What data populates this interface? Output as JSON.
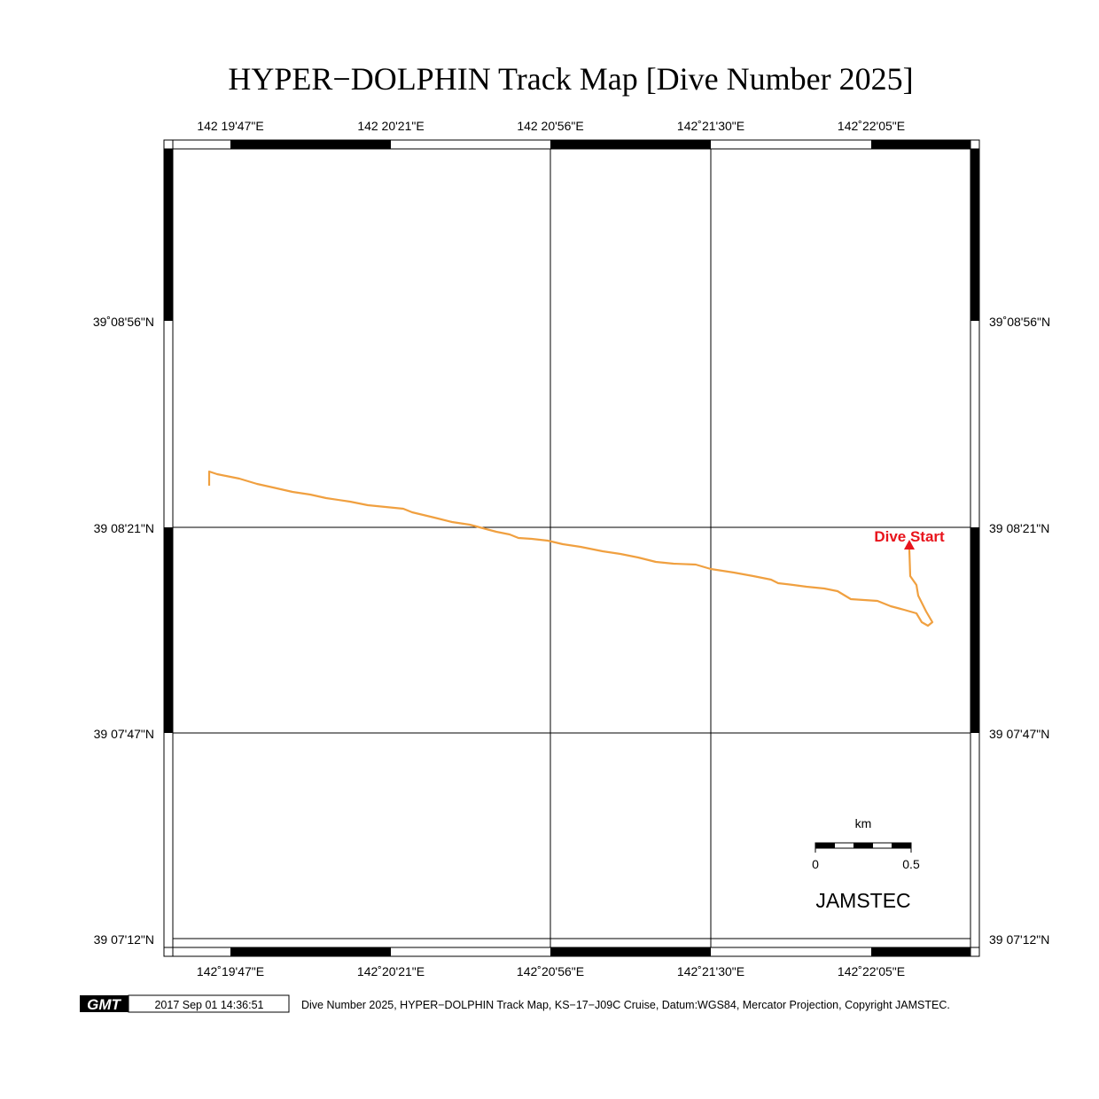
{
  "title": "HYPER−DOLPHIN Track Map [Dive Number 2025]",
  "top_lon_labels": [
    "142 19'47\"E",
    "142 20'21\"E",
    "142 20'56\"E",
    "142˚21'30\"E",
    "142˚22'05\"E"
  ],
  "bottom_lon_labels": [
    "142˚19'47\"E",
    "142˚20'21\"E",
    "142˚20'56\"E",
    "142˚21'30\"E",
    "142˚22'05\"E"
  ],
  "left_lat_labels": [
    "39˚08'56\"N",
    "39 08'21\"N",
    "39 07'47\"N",
    "39 07'12\"N"
  ],
  "right_lat_labels": [
    "39˚08'56\"N",
    "39 08'21\"N",
    "39 07'47\"N",
    "39 07'12\"N"
  ],
  "dive_start_label": "Dive Start",
  "scale_bar": {
    "unit": "km",
    "min_label": "0",
    "max_label": "0.5"
  },
  "watermark": "JAMSTEC",
  "footer": {
    "logo_text": "GMT",
    "timestamp": "2017 Sep 01 14:36:51",
    "caption": "Dive Number 2025, HYPER−DOLPHIN Track Map, KS−17−J09C Cruise, Datum:WGS84, Mercator Projection, Copyright JAMSTEC."
  },
  "colors": {
    "track": "#f0a040",
    "dive_start": "#e8141c",
    "frame": "#000000"
  }
}
